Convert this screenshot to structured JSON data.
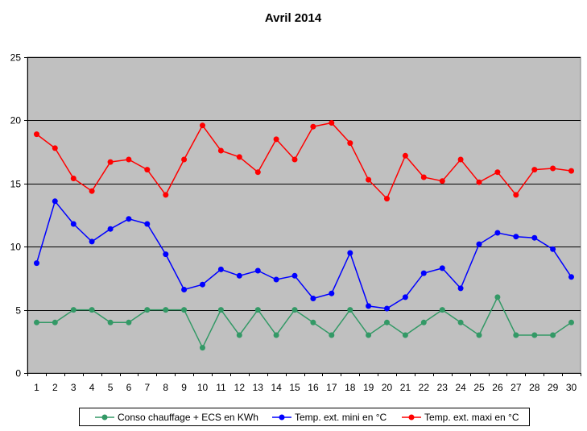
{
  "chart_data": {
    "type": "line",
    "title": "Avril 2014",
    "xlabel": "",
    "ylabel": "",
    "x": [
      1,
      2,
      3,
      4,
      5,
      6,
      7,
      8,
      9,
      10,
      11,
      12,
      13,
      14,
      15,
      16,
      17,
      18,
      19,
      20,
      21,
      22,
      23,
      24,
      25,
      26,
      27,
      28,
      29,
      30
    ],
    "ylim": [
      0,
      25
    ],
    "yticks": [
      0,
      5,
      10,
      15,
      20,
      25
    ],
    "grid": "horizontal",
    "background": "#c0c0c0",
    "legend_position": "bottom",
    "series": [
      {
        "name": "Conso chauffage + ECS en KWh",
        "color": "#339966",
        "values": [
          4,
          4,
          5,
          5,
          4,
          4,
          5,
          5,
          5,
          2,
          5,
          3,
          5,
          3,
          5,
          4,
          3,
          5,
          3,
          4,
          3,
          4,
          5,
          4,
          3,
          6,
          3,
          3,
          3,
          4
        ]
      },
      {
        "name": "Temp. ext. mini en °C",
        "color": "#0000ff",
        "values": [
          8.7,
          13.6,
          11.8,
          10.4,
          11.4,
          12.2,
          11.8,
          9.4,
          6.6,
          7,
          8.2,
          7.7,
          8.1,
          7.4,
          7.7,
          5.9,
          6.3,
          9.5,
          5.3,
          5.1,
          6,
          7.9,
          8.3,
          6.7,
          10.2,
          11.1,
          10.8,
          10.7,
          9.8,
          7.6
        ]
      },
      {
        "name": "Temp. ext. maxi en °C",
        "color": "#ff0000",
        "values": [
          18.9,
          17.8,
          15.4,
          14.4,
          16.7,
          16.9,
          16.1,
          14.1,
          16.9,
          19.6,
          17.6,
          17.1,
          15.9,
          18.5,
          16.9,
          19.5,
          19.8,
          18.2,
          15.3,
          13.8,
          17.2,
          15.5,
          15.2,
          16.9,
          15.1,
          15.9,
          14.1,
          16.1,
          16.2,
          16
        ]
      }
    ]
  }
}
